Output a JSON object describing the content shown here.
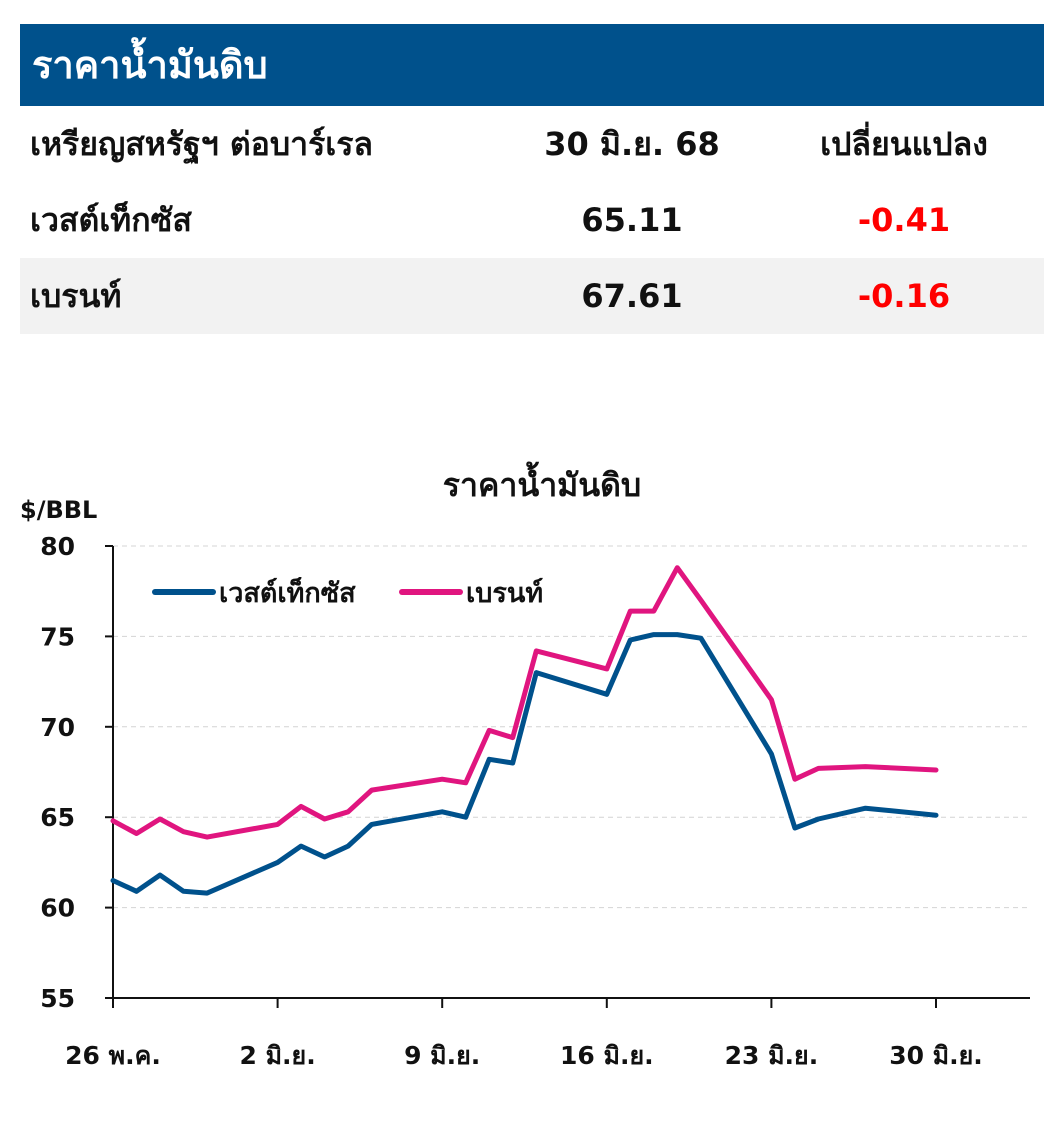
{
  "table": {
    "title": "ราคาน้ำมันดิบ",
    "header": {
      "name": "เหรียญสหรัฐฯ ต่อบาร์เรล",
      "date": "30 มิ.ย. 68",
      "change": "เปลี่ยนแปลง"
    },
    "rows": [
      {
        "name": "เวสต์เท็กซัส",
        "price": "65.11",
        "change": "-0.41"
      },
      {
        "name": "เบรนท์",
        "price": "67.61",
        "change": "-0.16"
      }
    ]
  },
  "colors": {
    "header_bg": "#00518c",
    "wti": "#00518c",
    "brent": "#e0157f",
    "negative": "#ff0000"
  },
  "chart_data": {
    "type": "line",
    "title": "ราคาน้ำมันดิบ",
    "ylabel": "$/BBL",
    "ylim": [
      55,
      80
    ],
    "yticks": [
      55,
      60,
      65,
      70,
      75,
      80
    ],
    "grid": true,
    "legend_position": "top-left",
    "x": [
      "2025-05-26",
      "2025-05-27",
      "2025-05-28",
      "2025-05-29",
      "2025-05-30",
      "2025-06-02",
      "2025-06-03",
      "2025-06-04",
      "2025-06-05",
      "2025-06-06",
      "2025-06-09",
      "2025-06-10",
      "2025-06-11",
      "2025-06-12",
      "2025-06-13",
      "2025-06-16",
      "2025-06-17",
      "2025-06-18",
      "2025-06-19",
      "2025-06-20",
      "2025-06-23",
      "2025-06-24",
      "2025-06-25",
      "2025-06-27",
      "2025-06-30"
    ],
    "xtick_labels": [
      "26 พ.ค.",
      "2 มิ.ย.",
      "9 มิ.ย.",
      "16 มิ.ย.",
      "23 มิ.ย.",
      "30 มิ.ย."
    ],
    "xticks": [
      "2025-05-26",
      "2025-06-02",
      "2025-06-09",
      "2025-06-16",
      "2025-06-23",
      "2025-06-30"
    ],
    "series": [
      {
        "name": "เวสต์เท็กซัส",
        "values": [
          61.5,
          60.9,
          61.8,
          60.9,
          60.8,
          62.5,
          63.4,
          62.8,
          63.4,
          64.6,
          65.3,
          65.0,
          68.2,
          68.0,
          73.0,
          71.8,
          74.8,
          75.1,
          75.1,
          74.9,
          68.5,
          64.4,
          64.9,
          65.5,
          65.11
        ]
      },
      {
        "name": "เบรนท์",
        "values": [
          64.8,
          64.1,
          64.9,
          64.2,
          63.9,
          64.6,
          65.6,
          64.9,
          65.3,
          66.5,
          67.1,
          66.9,
          69.8,
          69.4,
          74.2,
          73.2,
          76.4,
          76.4,
          78.8,
          77.0,
          71.5,
          67.1,
          67.7,
          67.8,
          67.61
        ]
      }
    ]
  }
}
